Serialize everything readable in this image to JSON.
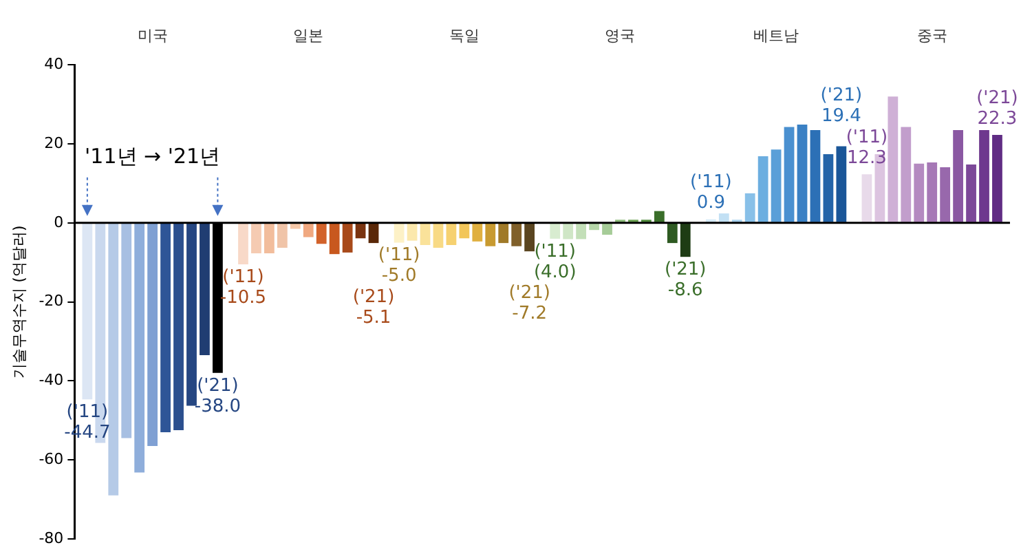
{
  "chart_data": {
    "type": "bar",
    "ylabel": "기술무역수지 (억달러)",
    "categories": [
      "미국",
      "일본",
      "독일",
      "영국",
      "베트남",
      "중국"
    ],
    "ylim": [
      -80,
      40
    ],
    "yticks": [
      -80,
      -60,
      -40,
      -20,
      0,
      20,
      40
    ],
    "grid": false,
    "legend": false,
    "annotations": [
      "'11년 → '21년"
    ],
    "ref_lines": [
      {
        "axis": "y",
        "value": 0,
        "color": "#000000"
      }
    ],
    "series": [
      {
        "colors": [
          "#dce6f4",
          "#f8d9c8",
          "#fdf1c6",
          "#d8ecd0",
          "#d6ebf8",
          "#e8daea"
        ],
        "values": [
          -44.7,
          -10.5,
          -5.0,
          -4.0,
          0.9,
          12.3
        ],
        "value_labels": [
          "('11)\n-44.7",
          "('11)\n-10.5",
          "('11)\n-5.0",
          "('11)\n(4.0)",
          "('11)\n0.9",
          "('11)\n12.3"
        ]
      },
      {
        "colors": [
          "#c9d8ee",
          "#f5cbb2",
          "#fbe8ac",
          "#cfe6c6",
          "#c2e0f4",
          "#dcc4e0"
        ],
        "values": [
          -55.7,
          -7.7,
          -4.5,
          -4.1,
          2.4,
          17.4
        ]
      },
      {
        "colors": [
          "#b5cae7",
          "#f2bd9c",
          "#fae29a",
          "#c3dfb8",
          "#a8d2ef",
          "#cfb0d6"
        ],
        "values": [
          -69.0,
          -7.7,
          -5.6,
          -4.1,
          0.8,
          32.0
        ]
      },
      {
        "colors": [
          "#a7bfe2",
          "#f0c4a8",
          "#f8da85",
          "#b5d6a8",
          "#88c0e8",
          "#c29ecc"
        ],
        "values": [
          -54.5,
          -6.3,
          -6.3,
          -1.8,
          7.5,
          24.3
        ]
      },
      {
        "colors": [
          "#8faedb",
          "#f6c8a8",
          "#f6d170",
          "#a6cc98",
          "#6caee0",
          "#b48ac0"
        ],
        "values": [
          -63.2,
          -1.5,
          -5.6,
          -3.0,
          16.9,
          15.0
        ]
      },
      {
        "colors": [
          "#7fa0d3",
          "#f0a880",
          "#f2c65a",
          "#8cbc7a",
          "#5a9fd8",
          "#a678b6"
        ],
        "values": [
          -56.5,
          -3.6,
          -3.9,
          0.8,
          18.6,
          15.3
        ]
      },
      {
        "colors": [
          "#2e5597",
          "#d2622a",
          "#e0b040",
          "#6aa050",
          "#4a90d0",
          "#9868ac"
        ],
        "values": [
          -53.0,
          -5.3,
          -4.7,
          0.8,
          24.3,
          14.1
        ]
      },
      {
        "colors": [
          "#2b4f8e",
          "#c8581e",
          "#c89a30",
          "#4f8a3a",
          "#3a80c4",
          "#8a58a2"
        ],
        "values": [
          -52.5,
          -7.9,
          -5.9,
          0.8,
          24.9,
          23.5
        ]
      },
      {
        "colors": [
          "#254682",
          "#a84a1a",
          "#a07a28",
          "#3a6e2a",
          "#2c70b6",
          "#7c4898"
        ],
        "values": [
          -46.3,
          -7.5,
          -5.1,
          3.0,
          23.5,
          14.8
        ]
      },
      {
        "colors": [
          "#203d72",
          "#7a3410",
          "#80602a",
          "#2e5a22",
          "#2464a8",
          "#6e388e"
        ],
        "values": [
          -33.5,
          -3.9,
          -5.9,
          -5.1,
          17.4,
          23.5
        ]
      },
      {
        "colors": [
          "#000000",
          "#5a2808",
          "#5a4520",
          "#1e3c14",
          "#1a5698",
          "#602c84"
        ],
        "values": [
          -38.0,
          -5.1,
          -7.2,
          -8.6,
          19.4,
          22.3
        ],
        "value_labels": [
          "('21)\n-38.0",
          "('21)\n-5.1",
          "('21)\n-7.2",
          "('21)\n-8.6",
          "('21)\n19.4",
          "('21)\n22.3"
        ]
      }
    ]
  }
}
